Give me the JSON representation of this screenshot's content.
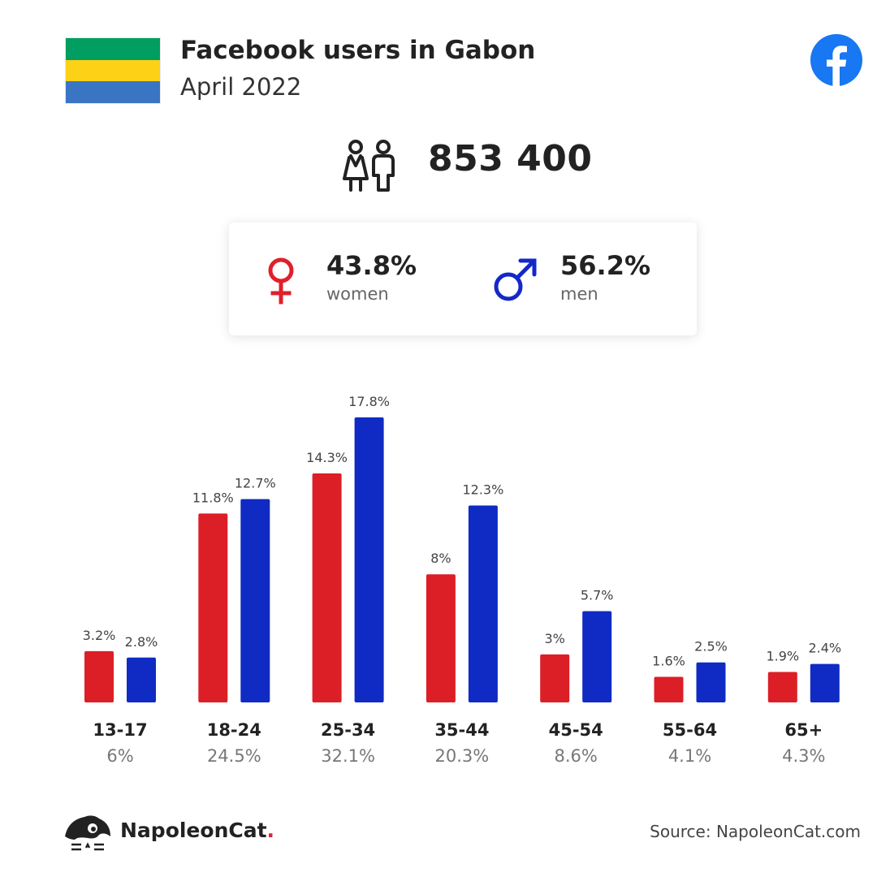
{
  "header": {
    "title": "Facebook users in Gabon",
    "subtitle": "April 2022",
    "flag_colors": [
      "#009e60",
      "#fcd116",
      "#3a75c4"
    ],
    "facebook_icon": "facebook-logo-icon",
    "facebook_color": "#1877f2"
  },
  "total": {
    "value": "853 400",
    "icon": "users-icon"
  },
  "gender": {
    "women": {
      "percent": "43.8%",
      "label": "women",
      "icon": "female-symbol-icon",
      "color": "#e0202a"
    },
    "men": {
      "percent": "56.2%",
      "label": "men",
      "icon": "male-symbol-icon",
      "color": "#1428c8"
    }
  },
  "chart_data": {
    "type": "bar",
    "categories": [
      "13-17",
      "18-24",
      "25-34",
      "35-44",
      "45-54",
      "55-64",
      "65+"
    ],
    "category_shares": [
      "6%",
      "24.5%",
      "32.1%",
      "20.3%",
      "8.6%",
      "4.1%",
      "4.3%"
    ],
    "series": [
      {
        "key": "women",
        "color": "#dc1f26",
        "values": [
          3.2,
          11.8,
          14.3,
          8,
          3,
          1.6,
          1.9
        ],
        "labels": [
          "3.2%",
          "11.8%",
          "14.3%",
          "8%",
          "3%",
          "1.6%",
          "1.9%"
        ]
      },
      {
        "key": "men",
        "color": "#0f2bc4",
        "values": [
          2.8,
          12.7,
          17.8,
          12.3,
          5.7,
          2.5,
          2.4
        ],
        "labels": [
          "2.8%",
          "12.7%",
          "17.8%",
          "12.3%",
          "5.7%",
          "2.5%",
          "2.4%"
        ]
      }
    ],
    "ylim": [
      0,
      17.8
    ],
    "grid": false
  },
  "footer": {
    "brand": "NapoleonCat",
    "brand_dot": ".",
    "brand_icon": "napoleoncat-logo-icon",
    "source": "Source: NapoleonCat.com"
  }
}
